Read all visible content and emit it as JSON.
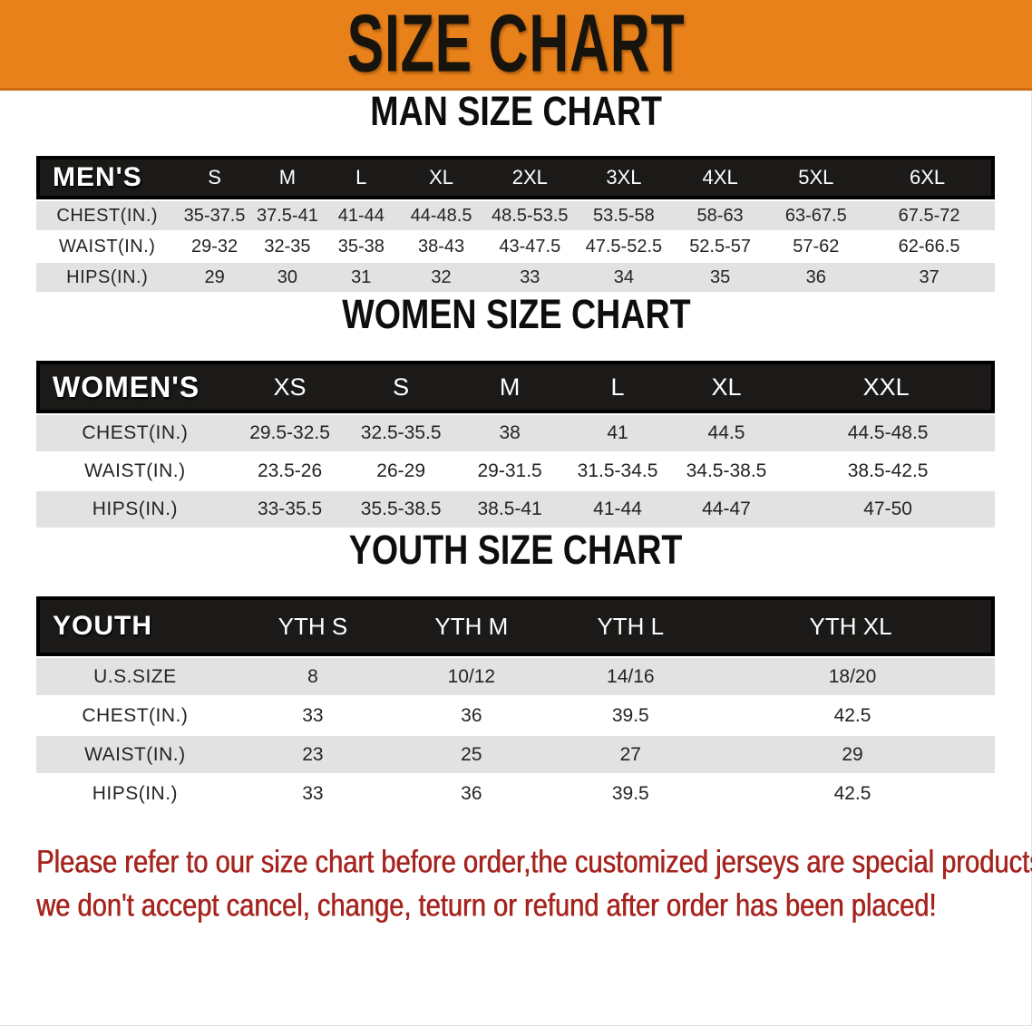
{
  "banner": {
    "title": "SIZE CHART"
  },
  "colors": {
    "banner_orange": "#E8811A",
    "header_black": "#1b1a18",
    "stripe_gray": "#E2E2E2",
    "disclaimer_red": "#A6241E"
  },
  "sections": [
    {
      "heading": "MAN SIZE CHART",
      "table": {
        "header_label": "MEN'S",
        "columns": [
          "S",
          "M",
          "L",
          "XL",
          "2XL",
          "3XL",
          "4XL",
          "5XL",
          "6XL"
        ],
        "rows": [
          {
            "label": "CHEST(IN.)",
            "values": [
              "35-37.5",
              "37.5-41",
              "41-44",
              "44-48.5",
              "48.5-53.5",
              "53.5-58",
              "58-63",
              "63-67.5",
              "67.5-72"
            ]
          },
          {
            "label": "WAIST(IN.)",
            "values": [
              "29-32",
              "32-35",
              "35-38",
              "38-43",
              "43-47.5",
              "47.5-52.5",
              "52.5-57",
              "57-62",
              "62-66.5"
            ]
          },
          {
            "label": "HIPS(IN.)",
            "values": [
              "29",
              "30",
              "31",
              "32",
              "33",
              "34",
              "35",
              "36",
              "37"
            ]
          }
        ]
      }
    },
    {
      "heading": "WOMEN SIZE CHART",
      "table": {
        "header_label": "WOMEN'S",
        "columns": [
          "XS",
          "S",
          "M",
          "L",
          "XL",
          "XXL"
        ],
        "rows": [
          {
            "label": "CHEST(IN.)",
            "values": [
              "29.5-32.5",
              "32.5-35.5",
              "38",
              "41",
              "44.5",
              "44.5-48.5"
            ]
          },
          {
            "label": "WAIST(IN.)",
            "values": [
              "23.5-26",
              "26-29",
              "29-31.5",
              "31.5-34.5",
              "34.5-38.5",
              "38.5-42.5"
            ]
          },
          {
            "label": "HIPS(IN.)",
            "values": [
              "33-35.5",
              "35.5-38.5",
              "38.5-41",
              "41-44",
              "44-47",
              "47-50"
            ]
          }
        ]
      }
    },
    {
      "heading": "YOUTH SIZE CHART",
      "table": {
        "header_label": "YOUTH",
        "columns": [
          "YTH S",
          "YTH M",
          "YTH L",
          "YTH XL"
        ],
        "rows": [
          {
            "label": "U.S.SIZE",
            "values": [
              "8",
              "10/12",
              "14/16",
              "18/20"
            ]
          },
          {
            "label": "CHEST(IN.)",
            "values": [
              "33",
              "36",
              "39.5",
              "42.5"
            ]
          },
          {
            "label": "WAIST(IN.)",
            "values": [
              "23",
              "25",
              "27",
              "29"
            ]
          },
          {
            "label": "HIPS(IN.)",
            "values": [
              "33",
              "36",
              "39.5",
              "42.5"
            ]
          }
        ]
      }
    }
  ],
  "disclaimer": {
    "line1": "Please refer to our size chart before order,the customized jerseys are special products,",
    "line2": "we don't accept cancel, change, teturn or refund after order has been placed!"
  }
}
